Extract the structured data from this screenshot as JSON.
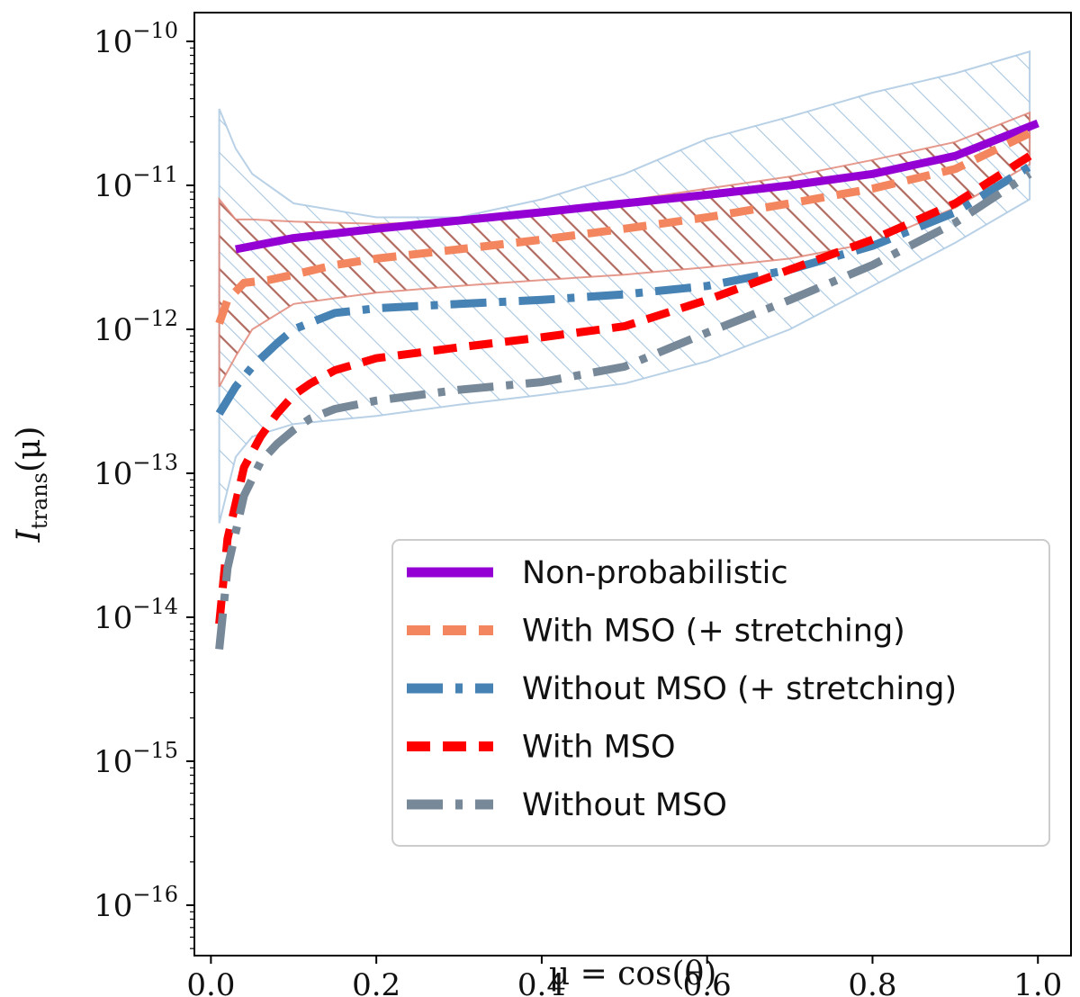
{
  "chart_data": {
    "type": "line",
    "xlabel": "μ = cos(θ)",
    "ylabel_main": "I",
    "ylabel_sub": "trans",
    "ylabel_tail": "(μ)",
    "xlim": [
      -0.02,
      1.04
    ],
    "ylim_log10": [
      -16.35,
      -9.8
    ],
    "y_scale": "log",
    "x_ticks": [
      0.0,
      0.2,
      0.4,
      0.6,
      0.8,
      1.0
    ],
    "x_tick_labels": [
      "0.0",
      "0.2",
      "0.4",
      "0.6",
      "0.8",
      "1.0"
    ],
    "y_ticks_exp": [
      -10,
      -11,
      -12,
      -13,
      -14,
      -15,
      -16
    ],
    "y_tick_labels": [
      {
        "base": "10",
        "exp": "−10"
      },
      {
        "base": "10",
        "exp": "−11"
      },
      {
        "base": "10",
        "exp": "−12"
      },
      {
        "base": "10",
        "exp": "−13"
      },
      {
        "base": "10",
        "exp": "−14"
      },
      {
        "base": "10",
        "exp": "−15"
      },
      {
        "base": "10",
        "exp": "−16"
      }
    ],
    "legend_position": "lower-right",
    "bands": [
      {
        "name": "Without MSO (+ stretching) uncertainty",
        "color": "#a8c6e0",
        "hatch": "diagonal",
        "x": [
          0.01,
          0.03,
          0.05,
          0.1,
          0.2,
          0.3,
          0.4,
          0.5,
          0.6,
          0.7,
          0.8,
          0.9,
          0.99
        ],
        "upper": [
          3.4e-11,
          1.8e-11,
          1.2e-11,
          7.5e-12,
          6e-12,
          6e-12,
          8e-12,
          1.2e-11,
          2.1e-11,
          3e-11,
          4.4e-11,
          6e-11,
          8.5e-11
        ],
        "lower": [
          4.5e-14,
          1.3e-13,
          1.8e-13,
          2.2e-13,
          2.5e-13,
          3e-13,
          3.5e-13,
          4.2e-13,
          6e-13,
          1e-12,
          2e-12,
          4e-12,
          8e-12
        ]
      },
      {
        "name": "With MSO (+ stretching) uncertainty",
        "color": "#e08070",
        "hatch": "diagonal",
        "x": [
          0.01,
          0.03,
          0.05,
          0.1,
          0.2,
          0.3,
          0.4,
          0.5,
          0.6,
          0.7,
          0.8,
          0.9,
          0.99
        ],
        "upper": [
          8e-12,
          5.8e-12,
          5.8e-12,
          5.6e-12,
          5.4e-12,
          5.6e-12,
          6.5e-12,
          7.8e-12,
          9.5e-12,
          1.15e-11,
          1.5e-11,
          2e-11,
          3.2e-11
        ],
        "lower": [
          4e-13,
          6.5e-13,
          1e-12,
          1.5e-12,
          1.8e-12,
          2e-12,
          2.2e-12,
          2.4e-12,
          2.7e-12,
          3.1e-12,
          4e-12,
          7e-12,
          1.4e-11
        ]
      }
    ],
    "series": [
      {
        "name": "Non-probabilistic",
        "color": "#9400d3",
        "style": "solid",
        "x": [
          0.03,
          0.1,
          0.2,
          0.3,
          0.4,
          0.5,
          0.6,
          0.7,
          0.8,
          0.9,
          1.0
        ],
        "values": [
          3.6e-12,
          4.3e-12,
          5e-12,
          5.7e-12,
          6.5e-12,
          7.5e-12,
          8.6e-12,
          1e-11,
          1.2e-11,
          1.6e-11,
          2.7e-11
        ]
      },
      {
        "name": "With MSO (+ stretching)",
        "color": "#f4865f",
        "style": "dashed",
        "x": [
          0.01,
          0.02,
          0.04,
          0.07,
          0.1,
          0.15,
          0.2,
          0.3,
          0.4,
          0.5,
          0.6,
          0.7,
          0.8,
          0.9,
          0.99
        ],
        "values": [
          1.1e-12,
          1.6e-12,
          2.1e-12,
          2.2e-12,
          2.4e-12,
          2.8e-12,
          3.1e-12,
          3.6e-12,
          4.2e-12,
          5e-12,
          6e-12,
          7.5e-12,
          9.5e-12,
          1.3e-11,
          2.3e-11
        ]
      },
      {
        "name": "Without MSO (+ stretching)",
        "color": "#4682b4",
        "style": "dashdot",
        "x": [
          0.01,
          0.03,
          0.05,
          0.08,
          0.1,
          0.15,
          0.2,
          0.3,
          0.4,
          0.5,
          0.6,
          0.7,
          0.8,
          0.9,
          0.99
        ],
        "values": [
          2.6e-13,
          4e-13,
          5.5e-13,
          8e-13,
          1e-12,
          1.3e-12,
          1.4e-12,
          1.5e-12,
          1.6e-12,
          1.75e-12,
          2e-12,
          2.6e-12,
          3.8e-12,
          6.5e-12,
          1.35e-11
        ]
      },
      {
        "name": "With MSO",
        "color": "#ff0000",
        "style": "dashed",
        "x": [
          0.01,
          0.02,
          0.04,
          0.06,
          0.08,
          0.1,
          0.12,
          0.15,
          0.2,
          0.3,
          0.4,
          0.5,
          0.6,
          0.7,
          0.8,
          0.9,
          0.99
        ],
        "values": [
          9e-15,
          3.5e-14,
          1.1e-13,
          1.8e-13,
          2.6e-13,
          3.5e-13,
          4.2e-13,
          5.2e-13,
          6.3e-13,
          7.5e-13,
          8.8e-13,
          1.05e-12,
          1.6e-12,
          2.6e-12,
          4.2e-12,
          7.5e-12,
          1.6e-11
        ]
      },
      {
        "name": "Without MSO",
        "color": "#778899",
        "style": "dashdot",
        "x": [
          0.01,
          0.02,
          0.04,
          0.06,
          0.08,
          0.1,
          0.12,
          0.15,
          0.2,
          0.3,
          0.4,
          0.5,
          0.6,
          0.7,
          0.8,
          0.9,
          0.99
        ],
        "values": [
          6e-15,
          2.2e-14,
          7e-14,
          1.2e-13,
          1.6e-13,
          2e-13,
          2.4e-13,
          2.8e-13,
          3.2e-13,
          3.8e-13,
          4.3e-13,
          5.5e-13,
          9.5e-13,
          1.6e-12,
          2.8e-12,
          5.5e-12,
          1.2e-11
        ]
      }
    ]
  }
}
